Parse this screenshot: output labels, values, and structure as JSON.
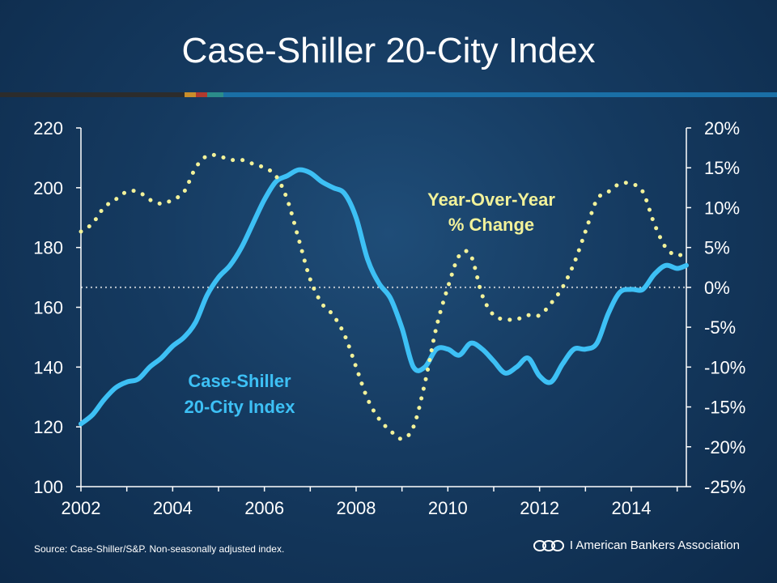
{
  "title": "Case-Shiller 20-City Index",
  "footer": {
    "source": "Source: Case-Shiller/S&P. Non-seasonally adjusted index.",
    "logo_text": "I American Bankers Association",
    "logo_icon": "aba-logo-icon"
  },
  "colors": {
    "background": "#153a60",
    "index_line": "#3dc0f5",
    "yoy_line": "#f2f29a",
    "axis": "#ffffff",
    "zero_line": "#b9c2cc",
    "bar_segments": [
      "#2c2c2c",
      "#2c2c2c",
      "#c98e2b",
      "#b03a2e",
      "#2b8c8a",
      "#1a6fa6"
    ]
  },
  "chart_data": {
    "type": "line",
    "title": "Case-Shiller 20-City Index",
    "x_ticks": [
      "2002",
      "2004",
      "2006",
      "2008",
      "2010",
      "2012",
      "2014"
    ],
    "x_range": [
      2002,
      2015.2
    ],
    "y_left": {
      "range": [
        100,
        220
      ],
      "ticks": [
        "100",
        "120",
        "140",
        "160",
        "180",
        "200",
        "220"
      ]
    },
    "y_right": {
      "range": [
        -25,
        20
      ],
      "ticks": [
        "-25%",
        "-20%",
        "-15%",
        "-10%",
        "-5%",
        "0%",
        "5%",
        "10%",
        "15%",
        "20%"
      ]
    },
    "zero_line": 0,
    "series": [
      {
        "name": "Case-Shiller\n20-City Index",
        "label_lines": [
          "Case-Shiller",
          "20-City Index"
        ],
        "axis": "left",
        "style": "solid",
        "points": [
          [
            2002.0,
            121
          ],
          [
            2002.25,
            124
          ],
          [
            2002.5,
            129
          ],
          [
            2002.75,
            133
          ],
          [
            2003.0,
            135
          ],
          [
            2003.25,
            136
          ],
          [
            2003.5,
            140
          ],
          [
            2003.75,
            143
          ],
          [
            2004.0,
            147
          ],
          [
            2004.25,
            150
          ],
          [
            2004.5,
            155
          ],
          [
            2004.75,
            164
          ],
          [
            2005.0,
            170
          ],
          [
            2005.25,
            174
          ],
          [
            2005.5,
            180
          ],
          [
            2005.75,
            188
          ],
          [
            2006.0,
            196
          ],
          [
            2006.25,
            202
          ],
          [
            2006.5,
            204
          ],
          [
            2006.75,
            206
          ],
          [
            2007.0,
            205
          ],
          [
            2007.25,
            202
          ],
          [
            2007.5,
            200
          ],
          [
            2007.75,
            198
          ],
          [
            2008.0,
            190
          ],
          [
            2008.25,
            176
          ],
          [
            2008.5,
            168
          ],
          [
            2008.75,
            163
          ],
          [
            2009.0,
            153
          ],
          [
            2009.25,
            140
          ],
          [
            2009.5,
            140
          ],
          [
            2009.75,
            146
          ],
          [
            2010.0,
            146
          ],
          [
            2010.25,
            144
          ],
          [
            2010.5,
            148
          ],
          [
            2010.75,
            146
          ],
          [
            2011.0,
            142
          ],
          [
            2011.25,
            138
          ],
          [
            2011.5,
            140
          ],
          [
            2011.75,
            143
          ],
          [
            2012.0,
            137
          ],
          [
            2012.25,
            135
          ],
          [
            2012.5,
            141
          ],
          [
            2012.75,
            146
          ],
          [
            2013.0,
            146
          ],
          [
            2013.25,
            148
          ],
          [
            2013.5,
            158
          ],
          [
            2013.75,
            165
          ],
          [
            2014.0,
            166
          ],
          [
            2014.25,
            166
          ],
          [
            2014.5,
            171
          ],
          [
            2014.75,
            174
          ],
          [
            2015.0,
            173
          ],
          [
            2015.2,
            174
          ]
        ]
      },
      {
        "name": "Year-Over-Year\n% Change",
        "label_lines": [
          "Year-Over-Year",
          "% Change"
        ],
        "axis": "right",
        "style": "dotted",
        "points": [
          [
            2002.0,
            7
          ],
          [
            2002.25,
            8
          ],
          [
            2002.5,
            10
          ],
          [
            2002.75,
            11
          ],
          [
            2003.0,
            12
          ],
          [
            2003.25,
            12
          ],
          [
            2003.5,
            11
          ],
          [
            2003.75,
            10.5
          ],
          [
            2004.0,
            11
          ],
          [
            2004.25,
            12
          ],
          [
            2004.5,
            15
          ],
          [
            2004.75,
            16.5
          ],
          [
            2005.0,
            16.5
          ],
          [
            2005.25,
            16
          ],
          [
            2005.5,
            16
          ],
          [
            2005.75,
            15.5
          ],
          [
            2006.0,
            15
          ],
          [
            2006.25,
            14
          ],
          [
            2006.5,
            11
          ],
          [
            2006.75,
            6
          ],
          [
            2007.0,
            1
          ],
          [
            2007.25,
            -2
          ],
          [
            2007.5,
            -3.5
          ],
          [
            2007.75,
            -6
          ],
          [
            2008.0,
            -10
          ],
          [
            2008.25,
            -14
          ],
          [
            2008.5,
            -16.5
          ],
          [
            2008.75,
            -18
          ],
          [
            2009.0,
            -19
          ],
          [
            2009.25,
            -17.5
          ],
          [
            2009.5,
            -12
          ],
          [
            2009.75,
            -5
          ],
          [
            2010.0,
            0
          ],
          [
            2010.25,
            4
          ],
          [
            2010.5,
            4
          ],
          [
            2010.75,
            -1
          ],
          [
            2011.0,
            -3.5
          ],
          [
            2011.25,
            -4
          ],
          [
            2011.5,
            -4
          ],
          [
            2011.75,
            -3.5
          ],
          [
            2012.0,
            -3.5
          ],
          [
            2012.25,
            -2
          ],
          [
            2012.5,
            0
          ],
          [
            2012.75,
            3
          ],
          [
            2013.0,
            7
          ],
          [
            2013.25,
            11
          ],
          [
            2013.5,
            12
          ],
          [
            2013.75,
            13
          ],
          [
            2014.0,
            13
          ],
          [
            2014.25,
            12
          ],
          [
            2014.5,
            8
          ],
          [
            2014.75,
            5
          ],
          [
            2015.0,
            4
          ],
          [
            2015.2,
            4.5
          ]
        ]
      }
    ]
  }
}
